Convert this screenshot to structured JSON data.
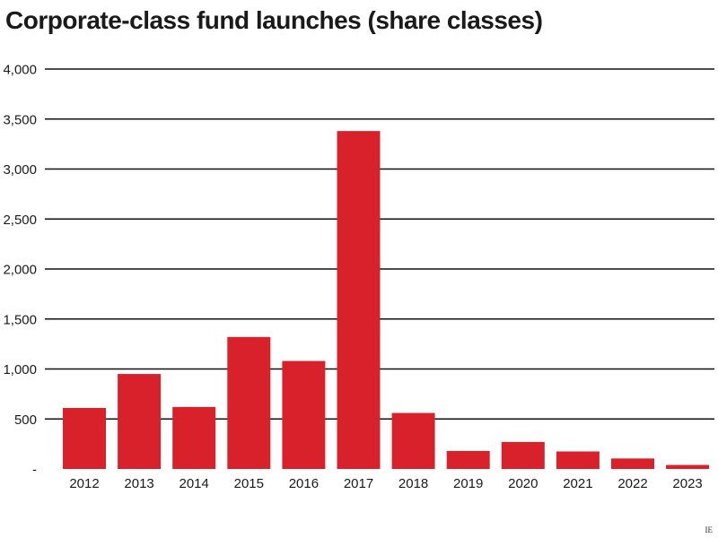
{
  "chart_data": {
    "type": "bar",
    "title": "Corporate-class fund launches (share classes)",
    "categories": [
      "2012",
      "2013",
      "2014",
      "2015",
      "2016",
      "2017",
      "2018",
      "2019",
      "2020",
      "2021",
      "2022",
      "2023"
    ],
    "values": [
      610,
      950,
      620,
      1320,
      1080,
      3380,
      560,
      180,
      270,
      175,
      105,
      40
    ],
    "ylim": [
      0,
      4000
    ],
    "yticks": [
      0,
      500,
      1000,
      1500,
      2000,
      2500,
      3000,
      3500,
      4000
    ],
    "ytick_labels": [
      "-",
      "500",
      "1,000",
      "1,500",
      "2,000",
      "2,500",
      "3,000",
      "3,500",
      "4,000"
    ],
    "xlabel": "",
    "ylabel": "",
    "grid": true,
    "legend": "none",
    "colors": {
      "bar": "#d9212b",
      "grid": "#111111",
      "text": "#1a1a1a"
    }
  },
  "credit": "IE"
}
